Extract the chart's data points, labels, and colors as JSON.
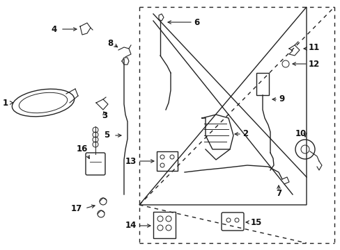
{
  "background_color": "#ffffff",
  "line_color": "#222222",
  "text_color": "#111111",
  "label_fontsize": 8.5,
  "figsize": [
    4.89,
    3.6
  ],
  "dpi": 100
}
